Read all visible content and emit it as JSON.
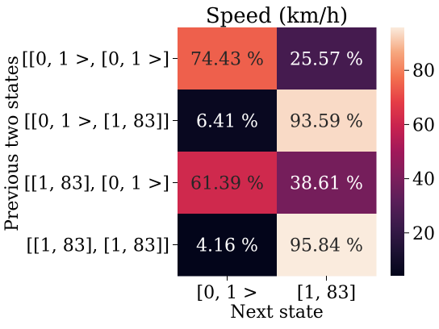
{
  "chart_data": {
    "type": "heatmap",
    "title": "Speed (km/h)",
    "xlabel": "Next state",
    "ylabel": "Previous two states",
    "x_categories": [
      "[0, 1 >",
      "[1, 83]"
    ],
    "y_categories": [
      "[[0, 1 >, [0, 1 >]",
      "[[0, 1 >, [1, 83]]",
      "[[1, 83], [0, 1 >]",
      "[[1, 83], [1, 83]]"
    ],
    "values": [
      [
        74.43,
        25.57
      ],
      [
        6.41,
        93.59
      ],
      [
        61.39,
        38.61
      ],
      [
        4.16,
        95.84
      ]
    ],
    "cell_labels": [
      [
        "74.43 %",
        "25.57 %"
      ],
      [
        "6.41 %",
        "93.59 %"
      ],
      [
        "61.39 %",
        "38.61 %"
      ],
      [
        "4.16 %",
        "95.84 %"
      ]
    ],
    "colorbar": {
      "range": [
        4.16,
        95.84
      ],
      "ticks": [
        20,
        40,
        60,
        80
      ],
      "colormap": "rocket"
    }
  }
}
